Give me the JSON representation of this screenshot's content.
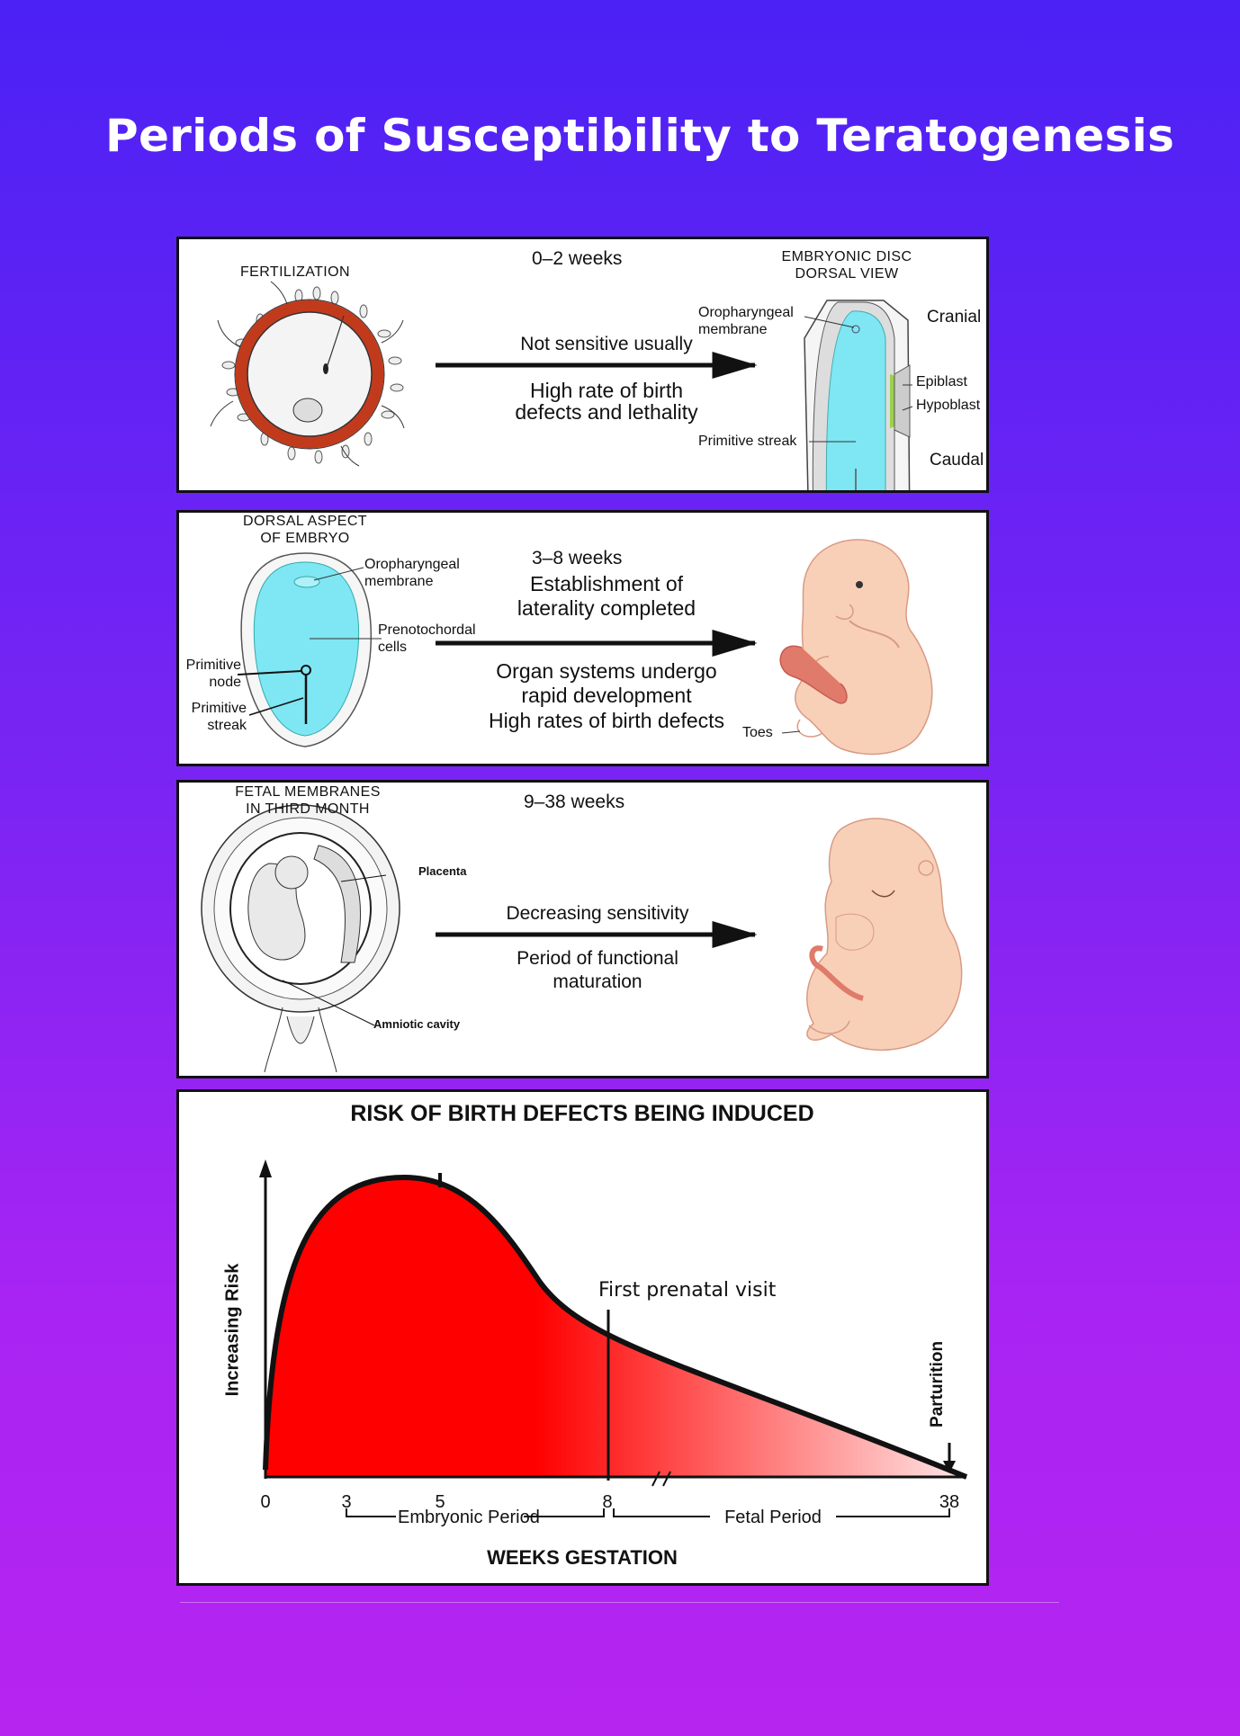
{
  "title": "Periods of Susceptibility to Teratogenesis",
  "colors": {
    "accent_red": "#ff0000",
    "embryo_blue": "#7fe6f3",
    "background_top": "#4b21f5",
    "background_bottom": "#b624f0"
  },
  "panel1": {
    "caption_left": "FERTILIZATION",
    "weeks": "0–2 weeks",
    "line1": "Not sensitive usually",
    "line2": "High rate of birth",
    "line3": "defects and lethality",
    "caption_right_1": "EMBRYONIC DISC",
    "caption_right_2": "DORSAL VIEW",
    "oro_1": "Oropharyngeal",
    "oro_2": "membrane",
    "cranial": "Cranial",
    "epiblast": "Epiblast",
    "hypoblast": "Hypoblast",
    "primitive_streak": "Primitive streak",
    "caudal": "Caudal"
  },
  "panel2": {
    "caption_1": "DORSAL ASPECT",
    "caption_2": "OF EMBRYO",
    "oro_1": "Oropharyngeal",
    "oro_2": "membrane",
    "preno_1": "Prenotochordal",
    "preno_2": "cells",
    "node_1": "Primitive",
    "node_2": "node",
    "streak_1": "Primitive",
    "streak_2": "streak",
    "weeks": "3–8 weeks",
    "line1": "Establishment of",
    "line2": "laterality completed",
    "line3": "Organ systems undergo",
    "line4": "rapid development",
    "line5": "High rates of birth defects",
    "toes": "Toes"
  },
  "panel3": {
    "caption_1": "FETAL MEMBRANES",
    "caption_2": "IN THIRD MONTH",
    "placenta": "Placenta",
    "amniotic": "Amniotic cavity",
    "weeks": "9–38 weeks",
    "line1": "Decreasing sensitivity",
    "line2": "Period of functional",
    "line3": "maturation"
  },
  "chart_data": {
    "type": "area",
    "title": "RISK OF BIRTH DEFECTS BEING INDUCED",
    "xlabel": "WEEKS GESTATION",
    "ylabel": "Increasing Risk",
    "x_ticks": [
      "0",
      "3",
      "5",
      "8",
      "38"
    ],
    "annotation_visit": "First prenatal visit",
    "annotation_end": "Parturition",
    "period_embryonic": "Embryonic Period",
    "period_fetal": "Fetal Period"
  }
}
